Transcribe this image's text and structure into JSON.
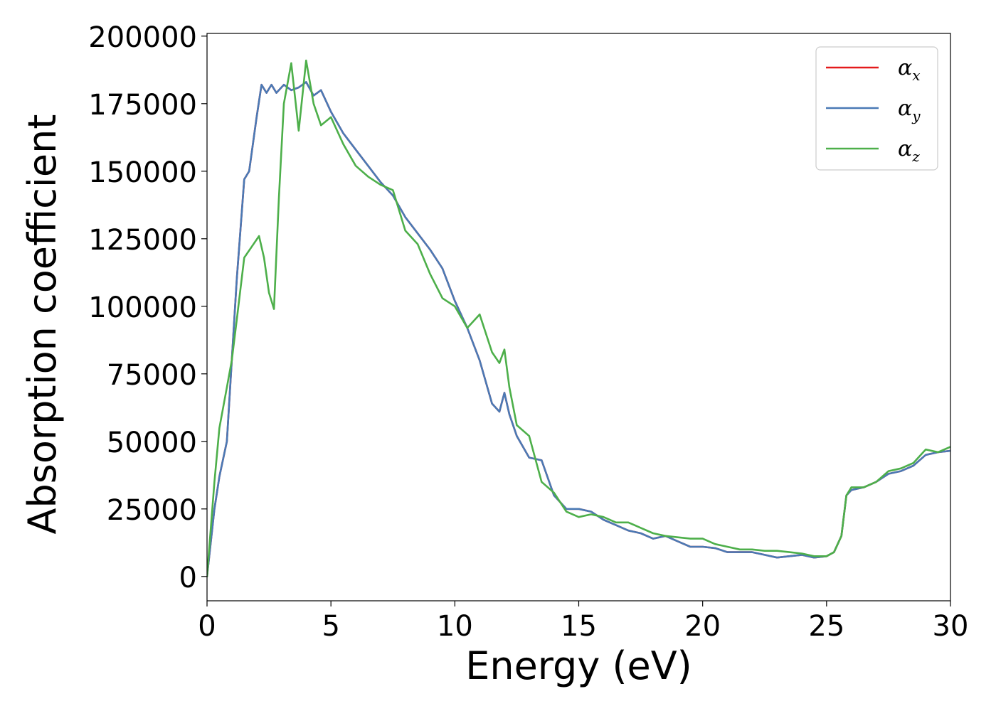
{
  "chart_data": {
    "type": "line",
    "xlabel": "Energy (eV)",
    "ylabel": "Absorption coefficient",
    "xlim": [
      0,
      30
    ],
    "ylim": [
      -9000,
      201000
    ],
    "x_ticks": [
      "0",
      "5",
      "10",
      "15",
      "20",
      "25",
      "30"
    ],
    "y_ticks": [
      "0",
      "25000",
      "50000",
      "75000",
      "100000",
      "125000",
      "150000",
      "175000",
      "200000"
    ],
    "grid": false,
    "legend_position": "top-right",
    "series": [
      {
        "name": "α",
        "subscript": "x",
        "color": "#e41a1c",
        "x": [
          0,
          0.3,
          0.5,
          0.8,
          1.0,
          1.2,
          1.5,
          1.7,
          2.0,
          2.2,
          2.4,
          2.6,
          2.8,
          3.1,
          3.4,
          3.7,
          4.0,
          4.3,
          4.6,
          5.0,
          5.5,
          6.0,
          6.5,
          7.0,
          7.5,
          8.0,
          8.5,
          9.0,
          9.5,
          10.0,
          10.5,
          11.0,
          11.5,
          11.8,
          12.0,
          12.2,
          12.5,
          13.0,
          13.5,
          14.0,
          14.5,
          15.0,
          15.5,
          16.0,
          16.5,
          17.0,
          17.5,
          18.0,
          18.5,
          19.0,
          19.5,
          20.0,
          20.5,
          21.0,
          21.5,
          22.0,
          22.5,
          23.0,
          23.5,
          24.0,
          24.5,
          25.0,
          25.3,
          25.6,
          25.8,
          26.0,
          26.5,
          27.0,
          27.5,
          28.0,
          28.5,
          29.0,
          29.5,
          30.0
        ],
        "y": [
          0,
          25000,
          37000,
          50000,
          80000,
          110000,
          147000,
          150000,
          170000,
          182000,
          179000,
          182000,
          179000,
          182000,
          180000,
          181000,
          183000,
          178000,
          180000,
          172000,
          164000,
          158000,
          152000,
          146000,
          141000,
          133000,
          127000,
          121000,
          114000,
          102000,
          92000,
          80000,
          64000,
          61000,
          68000,
          60000,
          52000,
          44000,
          43000,
          30000,
          25000,
          25000,
          24000,
          21000,
          19000,
          17000,
          16000,
          14000,
          15000,
          13000,
          11000,
          11000,
          10500,
          9000,
          9000,
          9000,
          8000,
          7000,
          7500,
          8000,
          7000,
          7500,
          9000,
          15000,
          30000,
          32000,
          33000,
          35000,
          38000,
          39000,
          41000,
          45000,
          46000,
          46500
        ]
      },
      {
        "name": "α",
        "subscript": "y",
        "color": "#4a7ab5",
        "x": [
          0,
          0.3,
          0.5,
          0.8,
          1.0,
          1.2,
          1.5,
          1.7,
          2.0,
          2.2,
          2.4,
          2.6,
          2.8,
          3.1,
          3.4,
          3.7,
          4.0,
          4.3,
          4.6,
          5.0,
          5.5,
          6.0,
          6.5,
          7.0,
          7.5,
          8.0,
          8.5,
          9.0,
          9.5,
          10.0,
          10.5,
          11.0,
          11.5,
          11.8,
          12.0,
          12.2,
          12.5,
          13.0,
          13.5,
          14.0,
          14.5,
          15.0,
          15.5,
          16.0,
          16.5,
          17.0,
          17.5,
          18.0,
          18.5,
          19.0,
          19.5,
          20.0,
          20.5,
          21.0,
          21.5,
          22.0,
          22.5,
          23.0,
          23.5,
          24.0,
          24.5,
          25.0,
          25.3,
          25.6,
          25.8,
          26.0,
          26.5,
          27.0,
          27.5,
          28.0,
          28.5,
          29.0,
          29.5,
          30.0
        ],
        "y": [
          0,
          25000,
          37000,
          50000,
          80000,
          110000,
          147000,
          150000,
          170000,
          182000,
          179000,
          182000,
          179000,
          182000,
          180000,
          181000,
          183000,
          178000,
          180000,
          172000,
          164000,
          158000,
          152000,
          146000,
          141000,
          133000,
          127000,
          121000,
          114000,
          102000,
          92000,
          80000,
          64000,
          61000,
          68000,
          60000,
          52000,
          44000,
          43000,
          30000,
          25000,
          25000,
          24000,
          21000,
          19000,
          17000,
          16000,
          14000,
          15000,
          13000,
          11000,
          11000,
          10500,
          9000,
          9000,
          9000,
          8000,
          7000,
          7500,
          8000,
          7000,
          7500,
          9000,
          15000,
          30000,
          32000,
          33000,
          35000,
          38000,
          39000,
          41000,
          45000,
          46000,
          46500
        ]
      },
      {
        "name": "α",
        "subscript": "z",
        "color": "#4daf4a",
        "x": [
          0,
          0.3,
          0.5,
          0.8,
          1.0,
          1.2,
          1.5,
          1.8,
          2.1,
          2.3,
          2.5,
          2.7,
          2.9,
          3.1,
          3.4,
          3.7,
          4.0,
          4.3,
          4.6,
          5.0,
          5.5,
          6.0,
          6.5,
          7.0,
          7.5,
          8.0,
          8.5,
          9.0,
          9.5,
          10.0,
          10.5,
          11.0,
          11.5,
          11.8,
          12.0,
          12.2,
          12.5,
          13.0,
          13.5,
          14.0,
          14.5,
          15.0,
          15.5,
          16.0,
          16.5,
          17.0,
          17.5,
          18.0,
          18.5,
          19.0,
          19.5,
          20.0,
          20.5,
          21.0,
          21.5,
          22.0,
          22.5,
          23.0,
          23.5,
          24.0,
          24.5,
          25.0,
          25.3,
          25.6,
          25.8,
          26.0,
          26.5,
          27.0,
          27.5,
          28.0,
          28.5,
          29.0,
          29.5,
          30.0
        ],
        "y": [
          0,
          35000,
          55000,
          70000,
          80000,
          95000,
          118000,
          122000,
          126000,
          118000,
          105000,
          99000,
          140000,
          175000,
          190000,
          165000,
          191000,
          175000,
          167000,
          170000,
          160000,
          152000,
          148000,
          145000,
          143000,
          128000,
          123000,
          112000,
          103000,
          100000,
          92000,
          97000,
          83000,
          79000,
          84000,
          70000,
          56000,
          52000,
          35000,
          31000,
          24000,
          22000,
          23000,
          22000,
          20000,
          20000,
          18000,
          16000,
          15000,
          14500,
          14000,
          14000,
          12000,
          11000,
          10000,
          10000,
          9500,
          9500,
          9000,
          8500,
          7500,
          7500,
          9000,
          15000,
          30000,
          33000,
          33000,
          35000,
          39000,
          40000,
          42000,
          47000,
          46000,
          48000
        ]
      }
    ]
  }
}
